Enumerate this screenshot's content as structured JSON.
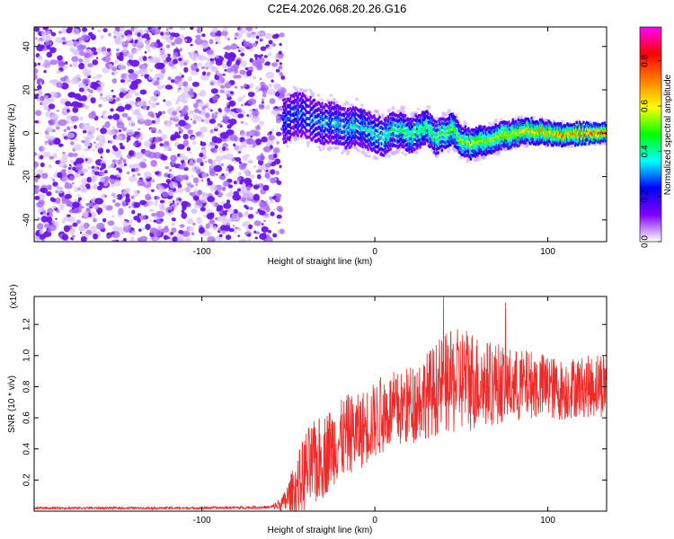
{
  "title": "C2E4.2026.068.20.26.G16",
  "chart_data": [
    {
      "type": "heatmap",
      "xlabel": "Height of straight line (km)",
      "ylabel": "Frequency (Hz)",
      "xlim": [
        -197,
        134
      ],
      "ylim": [
        -50,
        49
      ],
      "x_ticks": [
        -100,
        0,
        100
      ],
      "y_ticks": [
        -40,
        -20,
        0,
        20,
        40
      ],
      "colorbar": {
        "label": "Normalized spectral amplitude",
        "range": [
          0.0,
          0.95
        ],
        "ticks": [
          0.0,
          0.2,
          0.4,
          0.6,
          0.8
        ],
        "colors": [
          "#ffffff",
          "#8000ff",
          "#0000ff",
          "#00ffff",
          "#00ff00",
          "#ffff00",
          "#ff8000",
          "#ff0000",
          "#ff00ff"
        ]
      },
      "signal_start_km": -53,
      "signal_track": {
        "x": [
          -53,
          -45,
          -40,
          -35,
          -30,
          -25,
          -20,
          -15,
          -10,
          -5,
          0,
          5,
          10,
          15,
          20,
          25,
          30,
          35,
          40,
          45,
          50,
          55,
          60,
          70,
          80,
          90,
          100,
          110,
          120,
          134
        ],
        "freq_hz": [
          5,
          9,
          8,
          6,
          4,
          5,
          3,
          2,
          4,
          1,
          0,
          -2,
          1,
          2,
          -1,
          1,
          3,
          -2,
          0,
          2,
          -3,
          -5,
          -4,
          -2,
          0,
          1,
          0,
          -1,
          0,
          0
        ]
      },
      "series_color": "#7a2bff"
    },
    {
      "type": "line",
      "xlabel": "Height of straight line (km)",
      "ylabel": "SNR (10 * v/v)",
      "y_multiplier": "(x10⁴)",
      "xlim": [
        -197,
        134
      ],
      "ylim": [
        0,
        1.38
      ],
      "x_ticks": [
        -100,
        0,
        100
      ],
      "y_ticks": [
        0.2,
        0.4,
        0.6,
        0.8,
        1.0,
        1.2
      ],
      "series": [
        {
          "color": "#ee2b2b",
          "x": [
            -197,
            -150,
            -100,
            -60,
            -53,
            -45,
            -40,
            -35,
            -30,
            -25,
            -20,
            -15,
            -10,
            -5,
            0,
            5,
            10,
            15,
            20,
            25,
            30,
            35,
            40,
            45,
            50,
            55,
            60,
            65,
            70,
            75,
            80,
            85,
            90,
            95,
            100,
            105,
            110,
            115,
            120,
            125,
            130,
            134
          ],
          "mean": [
            0.02,
            0.02,
            0.02,
            0.025,
            0.05,
            0.15,
            0.25,
            0.3,
            0.35,
            0.42,
            0.45,
            0.5,
            0.5,
            0.55,
            0.58,
            0.62,
            0.65,
            0.65,
            0.68,
            0.72,
            0.75,
            0.78,
            0.82,
            0.82,
            0.85,
            0.85,
            0.83,
            0.82,
            0.82,
            0.82,
            0.8,
            0.8,
            0.82,
            0.8,
            0.8,
            0.78,
            0.78,
            0.8,
            0.8,
            0.8,
            0.82,
            0.82
          ],
          "spread": [
            0.008,
            0.008,
            0.008,
            0.01,
            0.06,
            0.2,
            0.28,
            0.28,
            0.28,
            0.26,
            0.26,
            0.26,
            0.25,
            0.25,
            0.25,
            0.25,
            0.25,
            0.25,
            0.26,
            0.27,
            0.28,
            0.3,
            0.32,
            0.34,
            0.34,
            0.35,
            0.3,
            0.28,
            0.27,
            0.25,
            0.24,
            0.24,
            0.22,
            0.22,
            0.22,
            0.2,
            0.2,
            0.2,
            0.2,
            0.2,
            0.22,
            0.22
          ]
        }
      ]
    }
  ]
}
